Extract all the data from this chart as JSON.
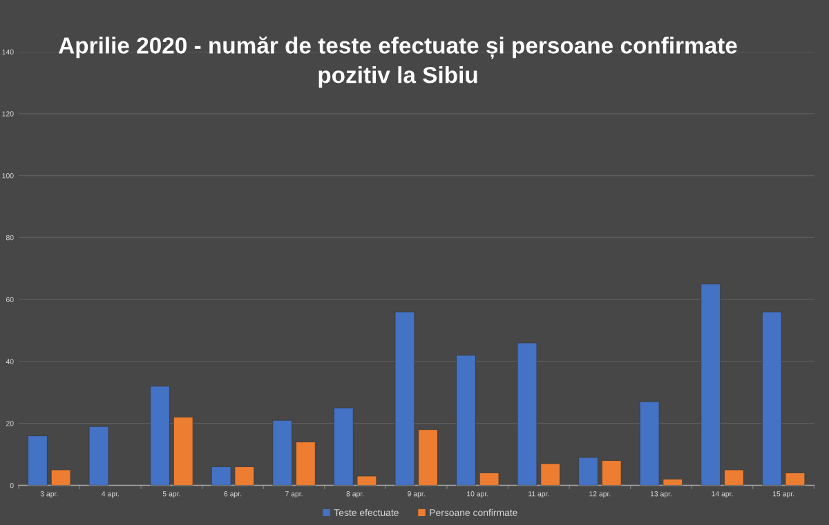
{
  "chart_data": {
    "type": "bar",
    "title": "Aprilie 2020 - număr de teste efectuate și persoane confirmate\npozitiv la Sibiu",
    "categories": [
      "3 apr.",
      "4 apr.",
      "5 apr.",
      "6 apr.",
      "7 apr.",
      "8 apr.",
      "9 apr.",
      "10 apr.",
      "11 apr.",
      "12 apr.",
      "13 apr.",
      "14 apr.",
      "15 apr."
    ],
    "series": [
      {
        "name": "Teste efectuate",
        "color": "#4472c4",
        "values": [
          16,
          19,
          32,
          6,
          21,
          25,
          56,
          42,
          46,
          9,
          27,
          65,
          56
        ]
      },
      {
        "name": "Persoane confirmate",
        "color": "#ed7d31",
        "values": [
          5,
          null,
          22,
          6,
          14,
          3,
          18,
          4,
          7,
          8,
          2,
          5,
          4
        ]
      }
    ],
    "ylim": [
      0,
      140
    ],
    "yticks": [
      0,
      20,
      40,
      60,
      80,
      100,
      120,
      140
    ],
    "grid": "y",
    "legend": "bottom"
  }
}
